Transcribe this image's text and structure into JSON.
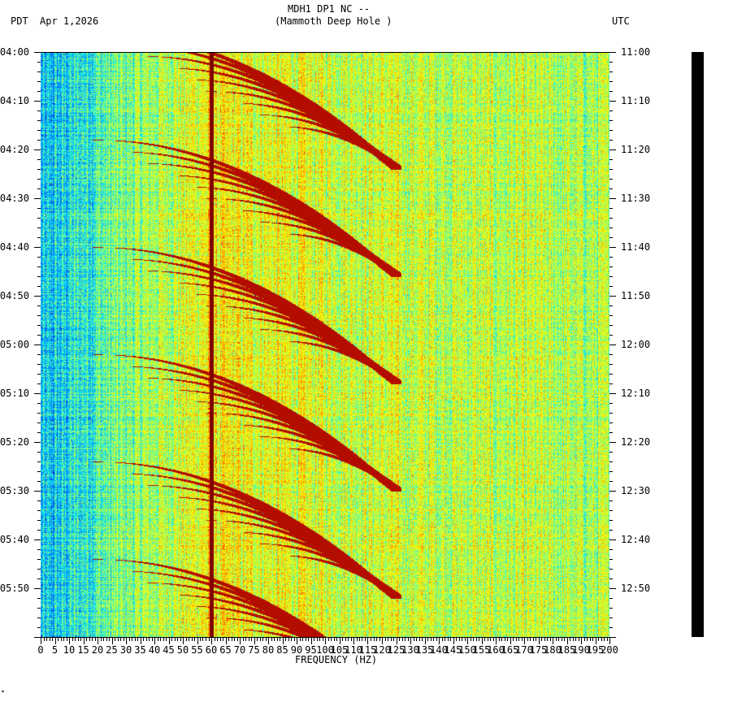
{
  "header": {
    "title": "MDH1 DP1 NC --",
    "subtitle": "(Mammoth Deep Hole )",
    "left_timezone": "PDT",
    "date": "Apr 1,2026",
    "right_timezone": "UTC"
  },
  "footer_mark": "*",
  "chart_data": {
    "type": "heatmap",
    "title": "MDH1 DP1 NC --",
    "subtitle": "(Mammoth Deep Hole )",
    "xlabel": "FREQUENCY (HZ)",
    "ylabel": "",
    "xlim": [
      0,
      200
    ],
    "ylim_minutes": [
      0,
      120
    ],
    "x_ticks": [
      "0",
      "5",
      "10",
      "15",
      "20",
      "25",
      "30",
      "35",
      "40",
      "45",
      "50",
      "55",
      "60",
      "65",
      "70",
      "75",
      "80",
      "85",
      "90",
      "95",
      "100",
      "105",
      "110",
      "115",
      "120",
      "125",
      "130",
      "135",
      "140",
      "145",
      "150",
      "155",
      "160",
      "165",
      "170",
      "175",
      "180",
      "185",
      "190",
      "195",
      "200"
    ],
    "y_ticks_left": [
      "04:00",
      "04:10",
      "04:20",
      "04:30",
      "04:40",
      "04:50",
      "05:00",
      "05:10",
      "05:20",
      "05:30",
      "05:40",
      "05:50"
    ],
    "y_ticks_right": [
      "11:00",
      "11:10",
      "11:20",
      "11:30",
      "11:40",
      "11:50",
      "12:00",
      "12:10",
      "12:20",
      "12:30",
      "12:40",
      "12:50"
    ],
    "colormap": [
      "#0000c0",
      "#0070ff",
      "#00c8ff",
      "#40ffc0",
      "#c0ff40",
      "#ffff00",
      "#ffa000",
      "#ff2000",
      "#800000"
    ],
    "persistent_line_hz": 60,
    "grid": false
  }
}
